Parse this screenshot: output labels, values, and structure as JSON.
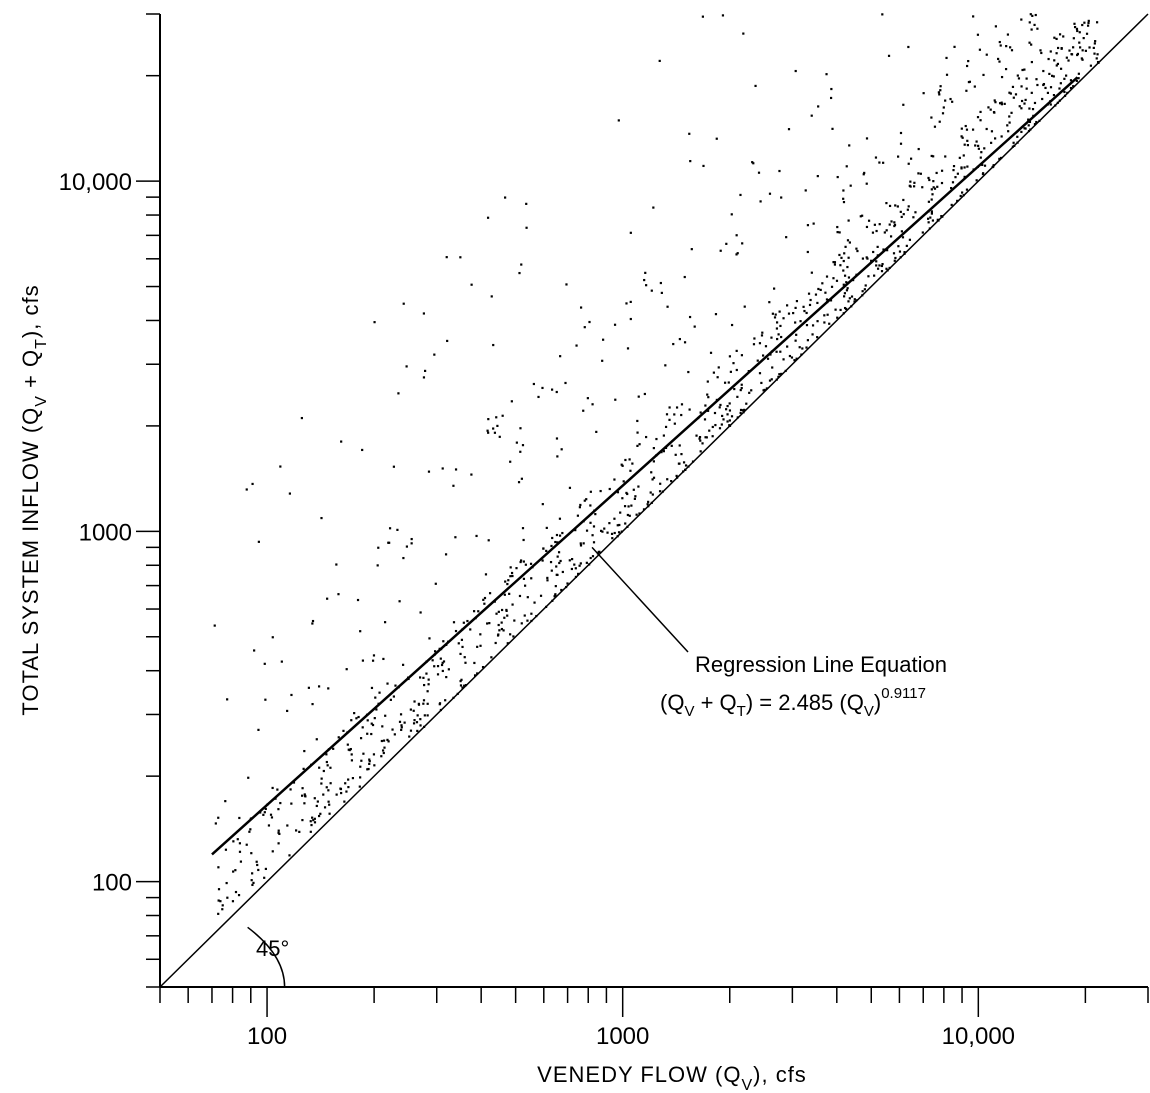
{
  "chart_data": {
    "type": "scatter",
    "title": "",
    "xlabel": {
      "prefix": "VENEDY FLOW (Q",
      "sub": "V",
      "suffix": "), cfs"
    },
    "ylabel": {
      "p1": "TOTAL SYSTEM INFLOW (Q",
      "s1": "V",
      "p2": " + Q",
      "s2": "T",
      "p3": "), cfs"
    },
    "x_scale": "log",
    "y_scale": "log",
    "xlim": [
      50,
      30000
    ],
    "ylim": [
      50,
      30000
    ],
    "x_ticks": [
      {
        "value": 100,
        "label": "100"
      },
      {
        "value": 1000,
        "label": "1000"
      },
      {
        "value": 10000,
        "label": "10,000"
      }
    ],
    "y_ticks": [
      {
        "value": 100,
        "label": "100"
      },
      {
        "value": 1000,
        "label": "1000"
      },
      {
        "value": 10000,
        "label": "10,000"
      }
    ],
    "grid": false,
    "legend": "none",
    "reference_line": {
      "name": "45°",
      "slope": 1,
      "intercept": 1
    },
    "regression": {
      "coefficient": 2.485,
      "exponent": 0.9117,
      "x_range": [
        70,
        19000
      ]
    },
    "annotation": {
      "title": "Regression Line Equation",
      "eq_p1": "(Q",
      "eq_s1": "V",
      "eq_p2": " + Q",
      "eq_s2": "T",
      "eq_p3": ") = 2.485 (Q",
      "eq_s3": "V",
      "eq_p4": ")",
      "eq_exp": "0.9117",
      "pointer_at": [
        820,
        900
      ]
    },
    "angle_label": "45°",
    "scatter_summary": {
      "n_points": 1300,
      "x_range": [
        70,
        22000
      ],
      "dense_band_ratio_range": [
        1.0,
        1.5
      ],
      "max_ratio": 20
    }
  }
}
